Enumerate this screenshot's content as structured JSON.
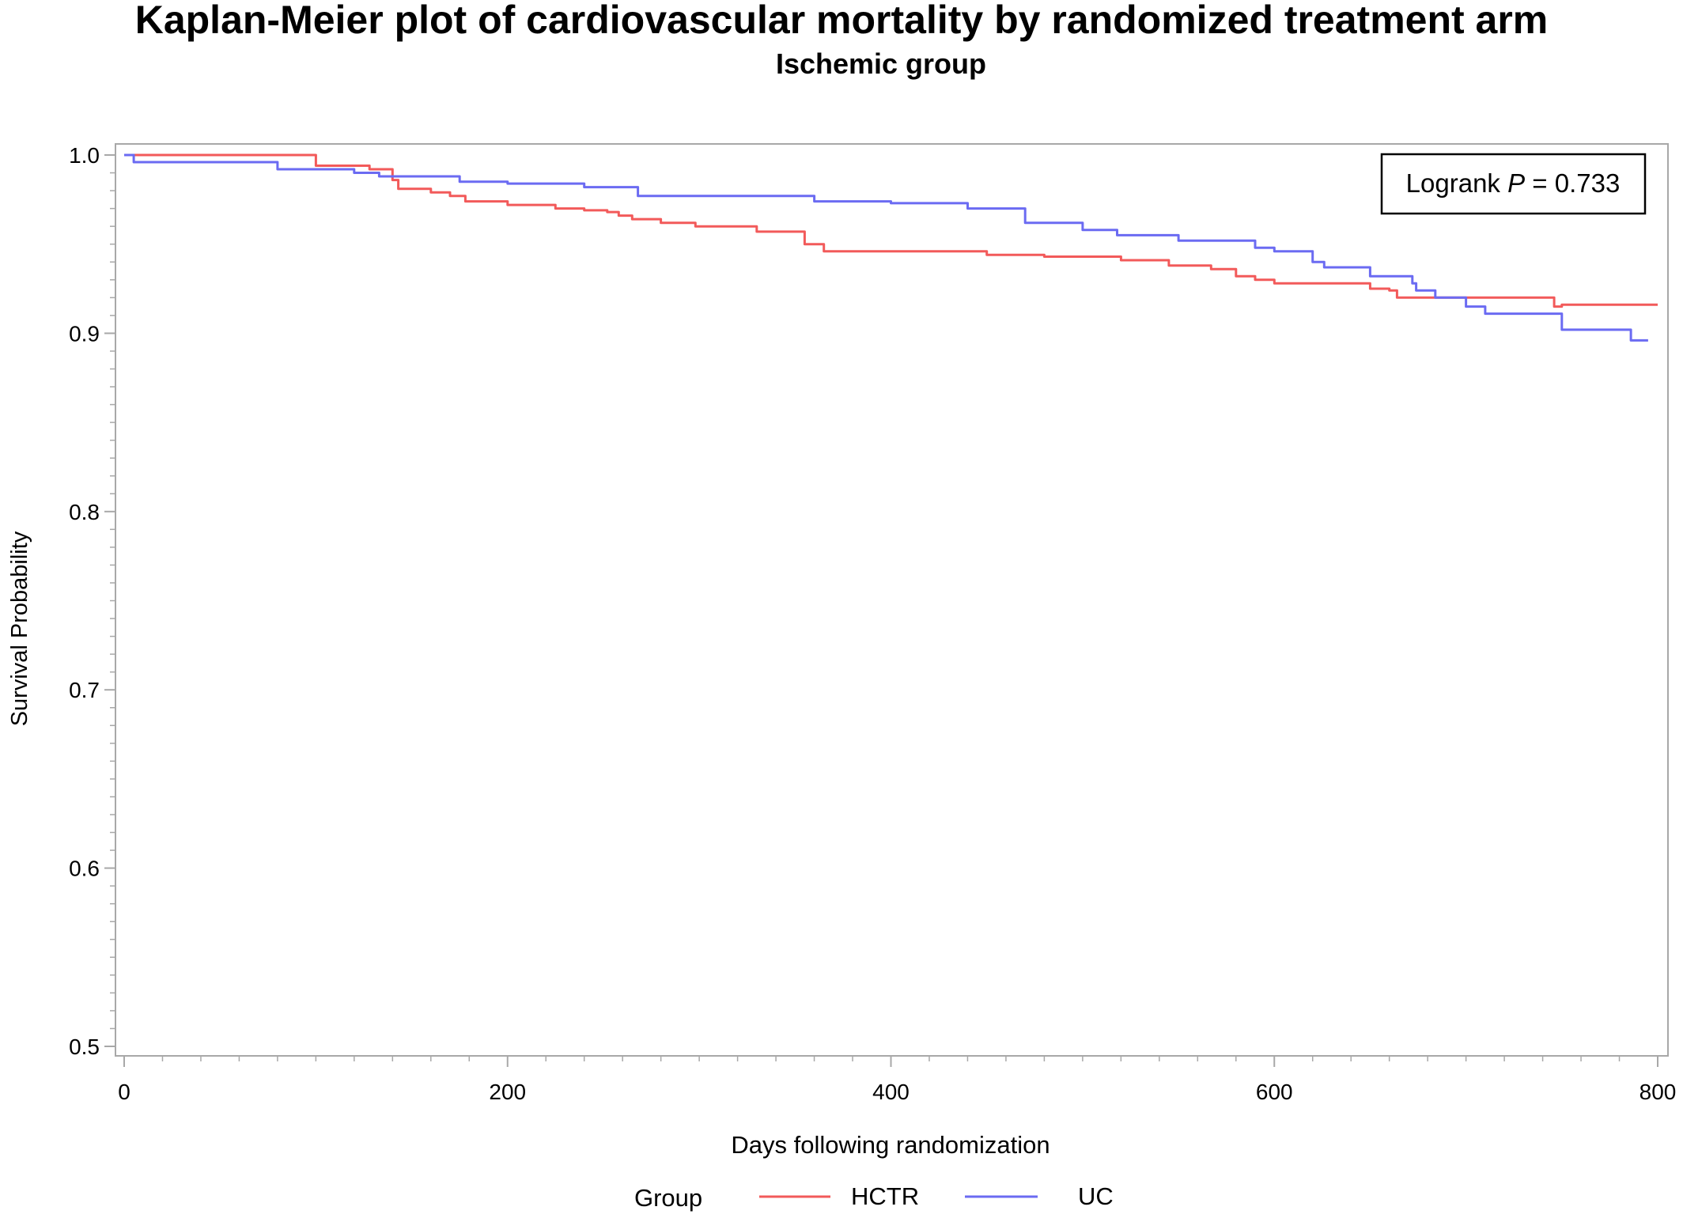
{
  "chart_data": {
    "type": "line",
    "title": "Kaplan-Meier plot of cardiovascular mortality by randomized treatment arm",
    "subtitle": "Ischemic group",
    "xlabel": "Days following randomization",
    "ylabel": "Survival Probability",
    "xlim": [
      0,
      800
    ],
    "ylim": [
      0.5,
      1.0
    ],
    "x_ticks": [
      {
        "value": 0,
        "label": "0"
      },
      {
        "value": 200,
        "label": "200"
      },
      {
        "value": 400,
        "label": "400"
      },
      {
        "value": 600,
        "label": "600"
      },
      {
        "value": 800,
        "label": "800"
      }
    ],
    "y_ticks": [
      {
        "value": 0.5,
        "label": "0.5"
      },
      {
        "value": 0.6,
        "label": "0.6"
      },
      {
        "value": 0.7,
        "label": "0.7"
      },
      {
        "value": 0.8,
        "label": "0.8"
      },
      {
        "value": 0.9,
        "label": "0.9"
      },
      {
        "value": 1.0,
        "label": "1.0"
      }
    ],
    "grid": false,
    "step": true,
    "annotation": {
      "prefix": "Logrank ",
      "italic": "P",
      "suffix": " = 0.733"
    },
    "legend": {
      "title": "Group",
      "position": "bottom"
    },
    "series": [
      {
        "name": "HCTR",
        "color": "#f25a5a",
        "points": [
          [
            0,
            1.0
          ],
          [
            60,
            1.0
          ],
          [
            100,
            0.994
          ],
          [
            128,
            0.992
          ],
          [
            140,
            0.986
          ],
          [
            143,
            0.981
          ],
          [
            160,
            0.979
          ],
          [
            170,
            0.977
          ],
          [
            178,
            0.974
          ],
          [
            200,
            0.972
          ],
          [
            225,
            0.97
          ],
          [
            240,
            0.969
          ],
          [
            252,
            0.968
          ],
          [
            258,
            0.966
          ],
          [
            265,
            0.964
          ],
          [
            280,
            0.962
          ],
          [
            298,
            0.96
          ],
          [
            318,
            0.96
          ],
          [
            330,
            0.957
          ],
          [
            355,
            0.95
          ],
          [
            365,
            0.946
          ],
          [
            400,
            0.946
          ],
          [
            410,
            0.946
          ],
          [
            450,
            0.944
          ],
          [
            480,
            0.943
          ],
          [
            505,
            0.943
          ],
          [
            520,
            0.941
          ],
          [
            545,
            0.938
          ],
          [
            567,
            0.936
          ],
          [
            580,
            0.932
          ],
          [
            590,
            0.93
          ],
          [
            600,
            0.928
          ],
          [
            648,
            0.928
          ],
          [
            650,
            0.925
          ],
          [
            660,
            0.924
          ],
          [
            664,
            0.92
          ],
          [
            700,
            0.92
          ],
          [
            740,
            0.92
          ],
          [
            746,
            0.915
          ],
          [
            750,
            0.916
          ],
          [
            800,
            0.916
          ]
        ]
      },
      {
        "name": "UC",
        "color": "#6b6bf2",
        "points": [
          [
            0,
            1.0
          ],
          [
            5,
            0.996
          ],
          [
            55,
            0.996
          ],
          [
            80,
            0.992
          ],
          [
            120,
            0.99
          ],
          [
            133,
            0.988
          ],
          [
            150,
            0.988
          ],
          [
            175,
            0.985
          ],
          [
            200,
            0.984
          ],
          [
            240,
            0.982
          ],
          [
            260,
            0.982
          ],
          [
            268,
            0.977
          ],
          [
            318,
            0.977
          ],
          [
            360,
            0.974
          ],
          [
            400,
            0.973
          ],
          [
            440,
            0.97
          ],
          [
            470,
            0.962
          ],
          [
            500,
            0.958
          ],
          [
            515,
            0.958
          ],
          [
            518,
            0.955
          ],
          [
            550,
            0.952
          ],
          [
            590,
            0.948
          ],
          [
            600,
            0.946
          ],
          [
            620,
            0.94
          ],
          [
            626,
            0.937
          ],
          [
            648,
            0.937
          ],
          [
            650,
            0.932
          ],
          [
            668,
            0.932
          ],
          [
            672,
            0.928
          ],
          [
            674,
            0.924
          ],
          [
            683,
            0.924
          ],
          [
            684,
            0.92
          ],
          [
            696,
            0.92
          ],
          [
            700,
            0.915
          ],
          [
            708,
            0.915
          ],
          [
            710,
            0.911
          ],
          [
            744,
            0.911
          ],
          [
            750,
            0.902
          ],
          [
            780,
            0.902
          ],
          [
            786,
            0.896
          ],
          [
            795,
            0.896
          ]
        ]
      }
    ]
  }
}
